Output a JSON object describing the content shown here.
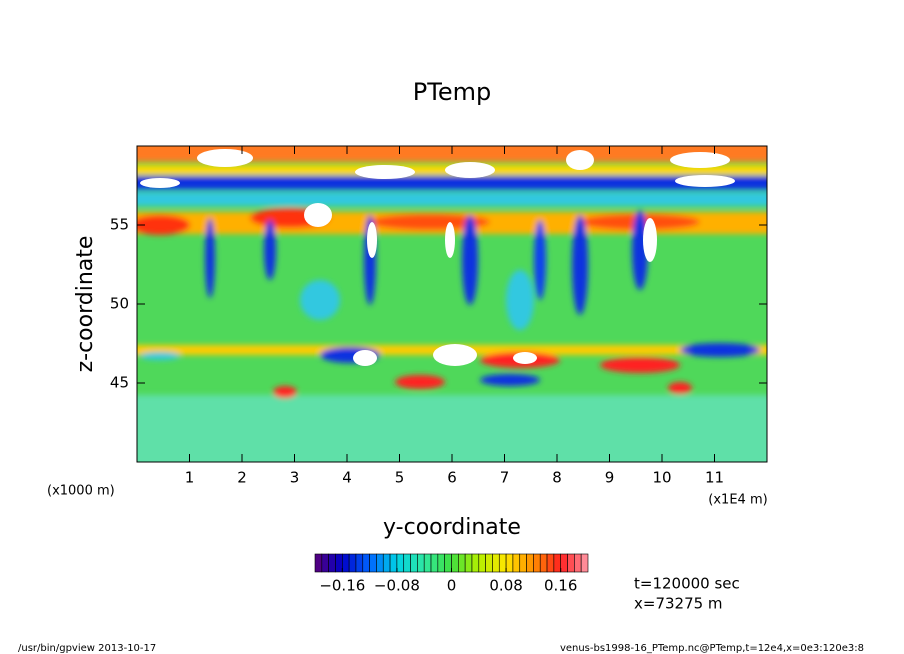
{
  "chart_data": {
    "type": "contour",
    "title": "PTemp",
    "xlabel": "y-coordinate",
    "ylabel": "z-coordinate",
    "xunit": "(x1E4 m)",
    "yunit": "(x1000 m)",
    "xlim": [
      0,
      12
    ],
    "xticks": [
      1,
      2,
      3,
      4,
      5,
      6,
      7,
      8,
      9,
      10,
      11
    ],
    "ylim": [
      40,
      60
    ],
    "yticks": [
      45,
      50,
      55
    ],
    "colorbar": {
      "lim": [
        -0.2,
        0.2
      ],
      "levels": 40,
      "ticks": [
        {
          "value": -0.16,
          "label": "−0.16"
        },
        {
          "value": -0.08,
          "label": "−0.08"
        },
        0,
        0.08,
        0.16
      ],
      "colors": [
        "#5a007a",
        "#0000c8",
        "#0064ff",
        "#00d2e6",
        "#30e8a0",
        "#40e040",
        "#b4f000",
        "#ffe600",
        "#ff8c00",
        "#ff2020",
        "#ff9aa8"
      ]
    },
    "notes": [
      "t=120000 sec",
      "x=73275 m"
    ],
    "footer_left": "/usr/bin/gpview   2013-10-17",
    "footer_right": "venus-bs1998-16_PTemp.nc@PTemp,t=12e4,x=0e3:120e3:8"
  }
}
